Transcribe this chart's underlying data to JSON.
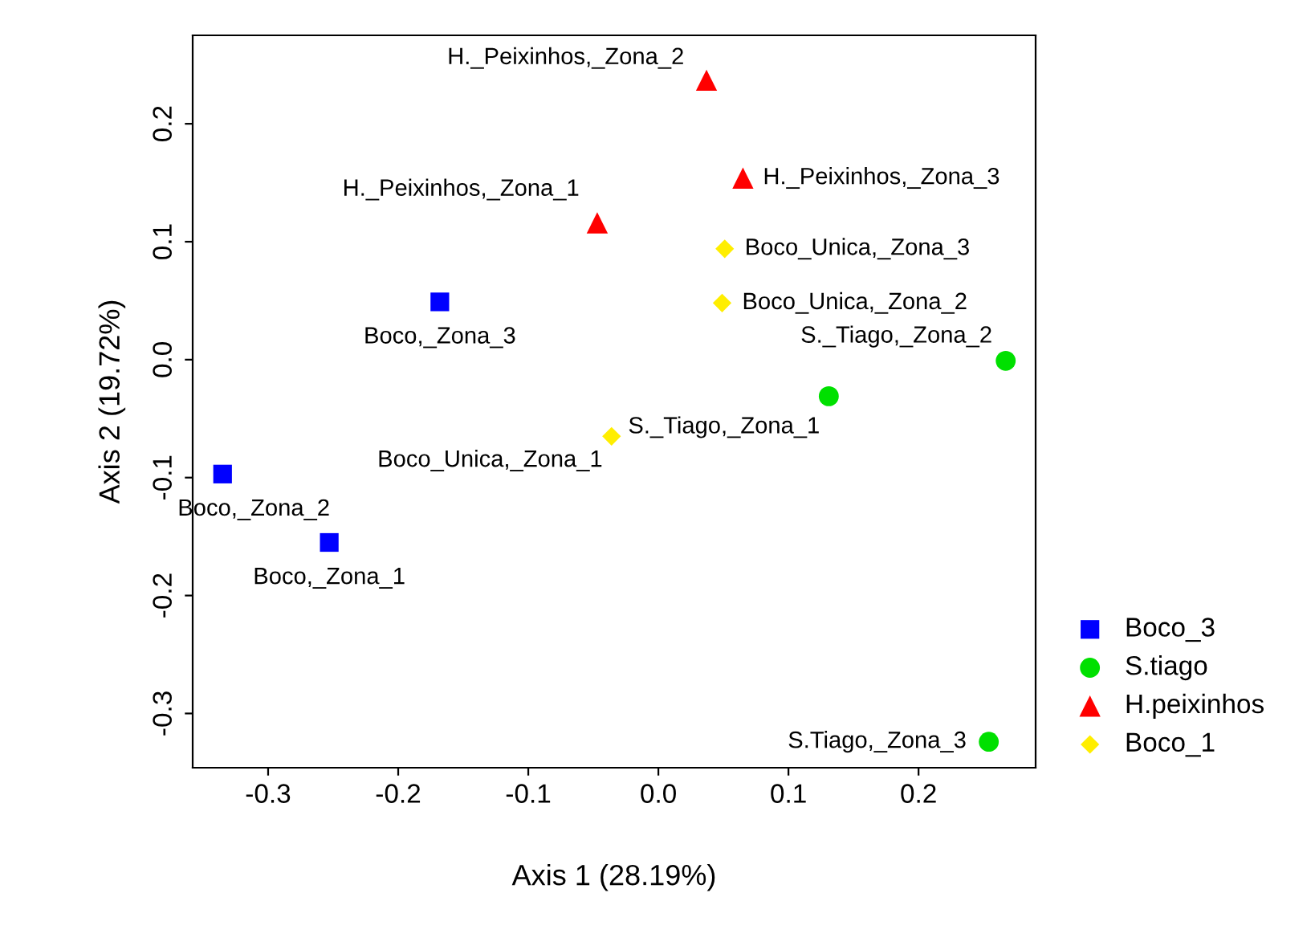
{
  "chart_data": {
    "type": "scatter",
    "xlabel": "Axis 1 (28.19%)",
    "ylabel": "Axis 2 (19.72%)",
    "xlim": [
      -0.358,
      0.29
    ],
    "ylim": [
      -0.346,
      0.275
    ],
    "xticks": [
      {
        "value": -0.3,
        "label": "-0.3"
      },
      {
        "value": -0.2,
        "label": "-0.2"
      },
      {
        "value": -0.1,
        "label": "-0.1"
      },
      {
        "value": 0.0,
        "label": "0.0"
      },
      {
        "value": 0.1,
        "label": "0.1"
      },
      {
        "value": 0.2,
        "label": "0.2"
      }
    ],
    "yticks": [
      {
        "value": -0.3,
        "label": "-0.3"
      },
      {
        "value": -0.2,
        "label": "-0.2"
      },
      {
        "value": -0.1,
        "label": "-0.1"
      },
      {
        "value": 0.0,
        "label": "0.0"
      },
      {
        "value": 0.1,
        "label": "0.1"
      },
      {
        "value": 0.2,
        "label": "0.2"
      }
    ],
    "grid": false,
    "legend": "bottom right",
    "series": [
      {
        "name": "Boco_3",
        "color": "#0000ff",
        "marker": "square",
        "x": [
          -0.168,
          -0.335,
          -0.253
        ],
        "values": [
          0.049,
          -0.097,
          -0.155
        ]
      },
      {
        "name": "S.tiago",
        "color": "#00e000",
        "marker": "circle",
        "x": [
          0.131,
          0.267,
          0.254
        ],
        "values": [
          -0.031,
          -0.001,
          -0.324
        ]
      },
      {
        "name": "H.peixinhos",
        "color": "#ff0000",
        "marker": "triangle",
        "x": [
          0.037,
          0.065,
          -0.047
        ],
        "values": [
          0.237,
          0.154,
          0.116
        ]
      },
      {
        "name": "Boco_1",
        "color": "#ffee00",
        "marker": "diamond",
        "x": [
          -0.036,
          0.049,
          0.051
        ],
        "values": [
          -0.065,
          0.048,
          0.094
        ]
      }
    ],
    "annotations": [
      {
        "text": "Boco,_Zona_3",
        "x": -0.168,
        "y": 0.049
      },
      {
        "text": "Boco,_Zona_2",
        "x": -0.335,
        "y": -0.097
      },
      {
        "text": "Boco,_Zona_1",
        "x": -0.253,
        "y": -0.155
      },
      {
        "text": "S._Tiago,_Zona_1",
        "x": 0.131,
        "y": -0.031
      },
      {
        "text": "S._Tiago,_Zona_2",
        "x": 0.267,
        "y": -0.001
      },
      {
        "text": "S.Tiago,_Zona_3",
        "x": 0.254,
        "y": -0.324
      },
      {
        "text": "H._Peixinhos,_Zona_2",
        "x": 0.037,
        "y": 0.237
      },
      {
        "text": "H._Peixinhos,_Zona_3",
        "x": 0.065,
        "y": 0.154
      },
      {
        "text": "H._Peixinhos,_Zona_1",
        "x": -0.047,
        "y": 0.116
      },
      {
        "text": "Boco_Unica,_Zona_1",
        "x": -0.036,
        "y": -0.065
      },
      {
        "text": "Boco_Unica,_Zona_2",
        "x": 0.049,
        "y": 0.048
      },
      {
        "text": "Boco_Unica,_Zona_3",
        "x": 0.051,
        "y": 0.094
      }
    ]
  }
}
